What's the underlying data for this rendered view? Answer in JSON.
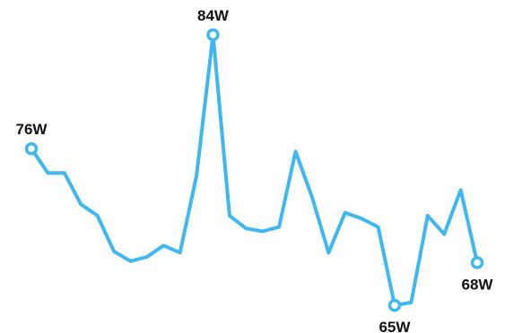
{
  "chart_data": {
    "type": "line",
    "title": "",
    "xlabel": "",
    "ylabel": "",
    "unit": "W",
    "color": "#3fb7ef",
    "grid": false,
    "axes_visible": false,
    "x": [
      1,
      2,
      3,
      4,
      5,
      6,
      7,
      8,
      9,
      10,
      11,
      12,
      13,
      14,
      15,
      16,
      17,
      18,
      19,
      20,
      21,
      22,
      23,
      24,
      25,
      26,
      27,
      28
    ],
    "values": [
      76,
      74.3,
      74.3,
      72.1,
      71.3,
      68.8,
      68.1,
      68.4,
      69.2,
      68.7,
      74.1,
      84,
      71.3,
      70.4,
      70.2,
      70.5,
      75.8,
      72.6,
      68.7,
      71.5,
      71.1,
      70.5,
      65,
      65.2,
      71.3,
      70,
      73.1,
      68
    ],
    "ylim": [
      64,
      85
    ],
    "labeled_points": [
      {
        "index": 0,
        "label": "76W",
        "position": "above"
      },
      {
        "index": 11,
        "label": "84W",
        "position": "above"
      },
      {
        "index": 22,
        "label": "65W",
        "position": "below"
      },
      {
        "index": 27,
        "label": "68W",
        "position": "below"
      }
    ]
  }
}
